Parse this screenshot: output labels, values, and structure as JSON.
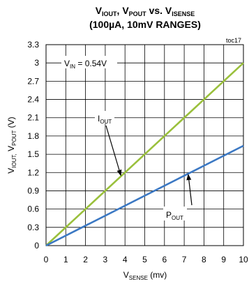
{
  "chart_data": {
    "type": "line",
    "title": {
      "line1": [
        {
          "text": "V",
          "sub": "IOUT"
        },
        {
          "text": ", V",
          "sub": "POUT"
        },
        {
          "text": " vs. V",
          "sub": "ISENSE"
        }
      ],
      "line2": "(100µA, 10mV RANGES)"
    },
    "tag": "toc17",
    "xlabel": {
      "main": "V",
      "sub": "SENSE",
      "suffix": " (mv)"
    },
    "ylabel": {
      "parts": [
        {
          "text": "V",
          "sub": "IOUT,"
        },
        {
          "text": " V",
          "sub": "POUT"
        }
      ],
      "suffix": " (V)"
    },
    "xlim": [
      0,
      10
    ],
    "ylim": [
      0,
      3.3
    ],
    "x_ticks": [
      0,
      1,
      2,
      3,
      4,
      5,
      6,
      7,
      8,
      9,
      10
    ],
    "y_ticks": [
      "0",
      "0.3",
      "0.6",
      "0.9",
      "1.2",
      "1.5",
      "1.8",
      "2.1",
      "2.4",
      "2.7",
      "3",
      "3.3"
    ],
    "grid": true,
    "series": [
      {
        "name": "I_OUT",
        "color": "#9ac03c",
        "x": [
          0,
          10
        ],
        "y": [
          0,
          3.0
        ]
      },
      {
        "name": "P_OUT",
        "color": "#3b78c3",
        "x": [
          0,
          10
        ],
        "y": [
          0,
          1.64
        ]
      }
    ],
    "annotations": [
      {
        "id": "vin",
        "text": "V",
        "sub": "IN",
        "suffix": " = 0.54V"
      },
      {
        "id": "iout",
        "text": "I",
        "sub": "OUT",
        "target": [
          3.8,
          1.14
        ]
      },
      {
        "id": "pout",
        "text": "P",
        "sub": "OUT",
        "target": [
          7.2,
          1.18
        ]
      }
    ]
  }
}
